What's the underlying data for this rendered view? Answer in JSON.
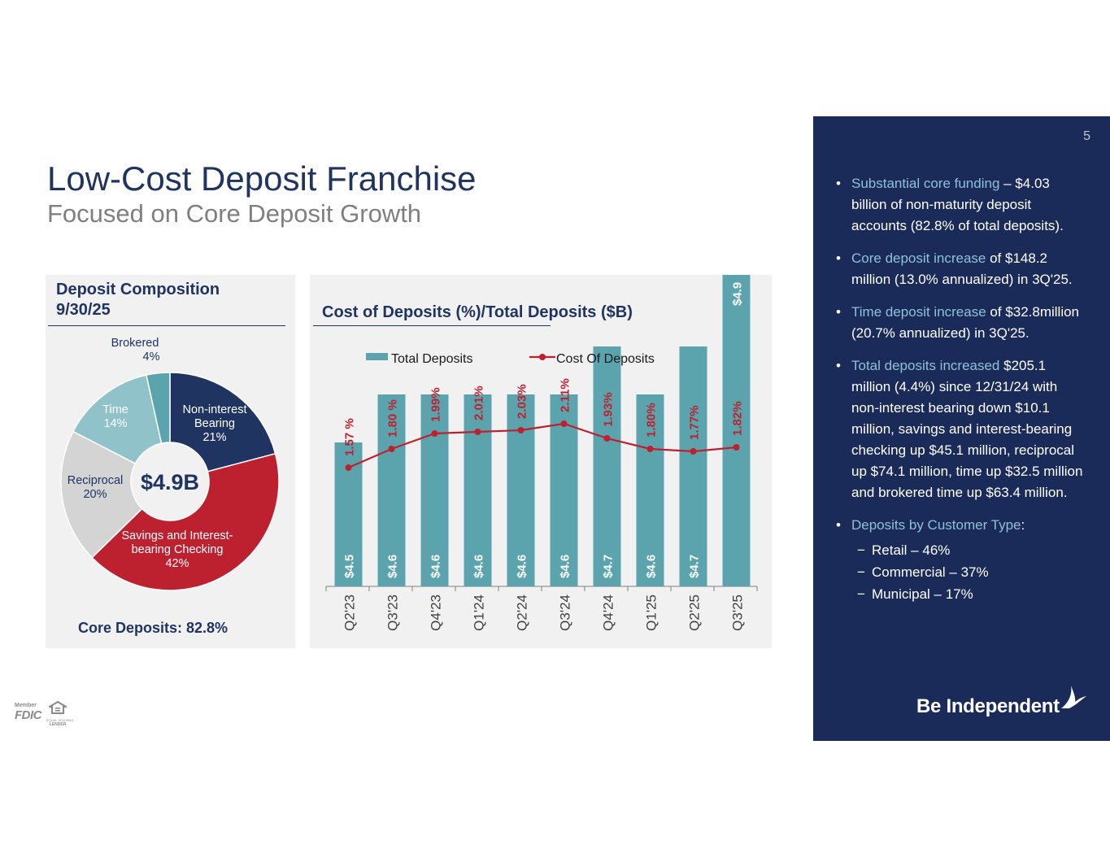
{
  "page": {
    "title": "Low-Cost Deposit Franchise",
    "subtitle": "Focused on Core Deposit Growth",
    "page_number": "5"
  },
  "left_panel": {
    "title_line1": "Deposit Composition",
    "title_line2": "9/30/25",
    "center_label": "$4.9B",
    "footer": "Core Deposits: 82.8%"
  },
  "right_panel": {
    "title": "Cost of Deposits (%)/Total Deposits ($B)"
  },
  "sidebar": {
    "b1_hl": "Substantial core funding",
    "b1_text": " – $4.03 billion of non-maturity deposit accounts (82.8% of total deposits).",
    "b2_hl": "Core deposit increase",
    "b2_text": " of $148.2 million (13.0% annualized) in 3Q'25.",
    "b3_hl": "Time deposit increase",
    "b3_text": " of $32.8million (20.7% annualized) in 3Q'25.",
    "b4_hl": "Total deposits increased",
    "b4_text": " $205.1 million (4.4%) since 12/31/24 with non-interest bearing down $10.1 million, savings and interest-bearing checking up $45.1 million, reciprocal up $74.1 million, time up $32.5 million and brokered time up $63.4 million.",
    "b5_hl": "Deposits by Customer Type",
    "b5_text": ":",
    "sub_items": [
      "Retail – 46%",
      "Commercial – 37%",
      "Municipal – 17%"
    ],
    "logo_text": "Be Independent",
    "fdic_member": "Member",
    "fdic_text": "FDIC",
    "ehl_line1": "EQUAL HOUSING",
    "ehl_line2": "LENDER"
  },
  "chart_data": [
    {
      "type": "pie",
      "title": "Deposit Composition 9/30/25",
      "center_label": "$4.9B",
      "slices": [
        {
          "label_lines": [
            "Non-interest",
            "Bearing"
          ],
          "pct_label": "21%",
          "value": 21,
          "color": "#1f3461"
        },
        {
          "label_lines": [
            "Savings and Interest-",
            "bearing Checking"
          ],
          "pct_label": "42%",
          "value": 42,
          "color": "#bd2130"
        },
        {
          "label_lines": [
            "Reciprocal"
          ],
          "pct_label": "20%",
          "value": 20,
          "color": "#d4d4d4"
        },
        {
          "label_lines": [
            "Time"
          ],
          "pct_label": "14%",
          "value": 14,
          "color": "#8fc3c9"
        },
        {
          "label_lines": [
            "Brokered"
          ],
          "pct_label": "4%",
          "value": 3.5,
          "color": "#5ba4ae"
        }
      ]
    },
    {
      "type": "bar",
      "title": "Cost of Deposits (%)/Total Deposits ($B)",
      "categories": [
        "Q2'23",
        "Q3'23",
        "Q4'23",
        "Q1'24",
        "Q2'24",
        "Q3'24",
        "Q4'24",
        "Q1'25",
        "Q2'25",
        "Q3'25"
      ],
      "series": [
        {
          "name": "Total Deposits",
          "type": "bar",
          "color": "#5ba4ae",
          "values": [
            4.5,
            4.6,
            4.6,
            4.6,
            4.6,
            4.6,
            4.7,
            4.6,
            4.7,
            4.9
          ],
          "labels": [
            "$4.5",
            "$4.6",
            "$4.6",
            "$4.6",
            "$4.6",
            "$4.6",
            "$4.7",
            "$4.6",
            "$4.7",
            "$4.9"
          ]
        },
        {
          "name": "Cost Of Deposits",
          "type": "line",
          "color": "#bd2130",
          "values": [
            1.57,
            1.8,
            1.99,
            2.01,
            2.03,
            2.11,
            1.93,
            1.8,
            1.77,
            1.82
          ],
          "labels": [
            "1.57 %",
            "1.80 %",
            "1.99%",
            "2.01%",
            "2.03%",
            "2.11%",
            "1.93%",
            "1.80%",
            "1.77%",
            "1.82%"
          ]
        }
      ],
      "legend": "top"
    }
  ]
}
